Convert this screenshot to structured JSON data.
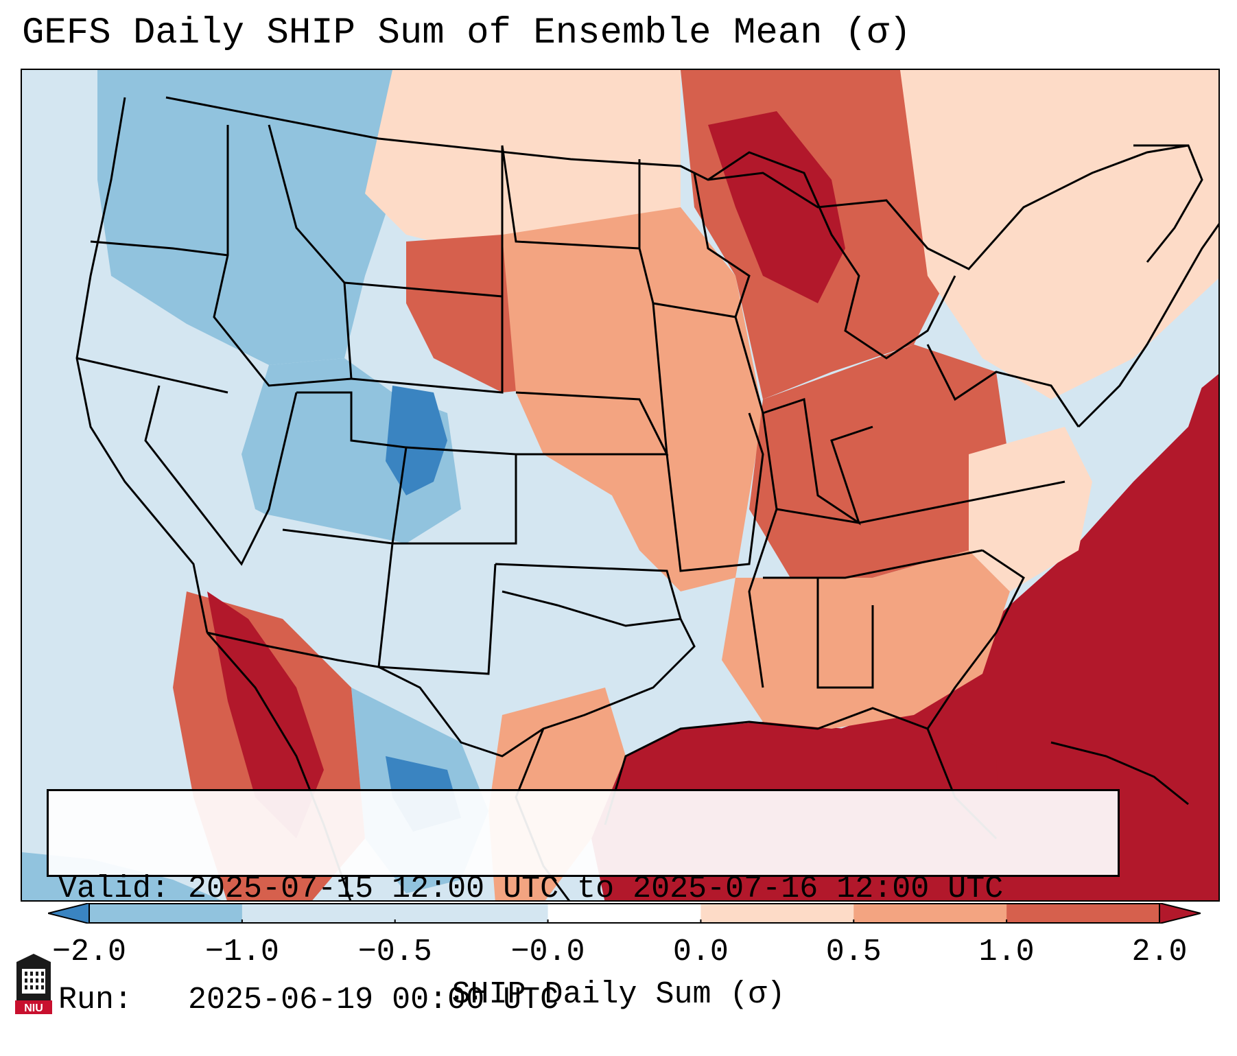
{
  "title": "GEFS Daily SHIP Sum of Ensemble Mean (σ)",
  "info": {
    "valid_label": "Valid:",
    "valid_value": "2025-07-15 12:00 UTC to 2025-07-16 12:00 UTC",
    "run_label": "Run:",
    "run_value": "2025-06-19 00:00 UTC"
  },
  "colorbar": {
    "label": "SHIP Daily Sum (σ)",
    "ticks": [
      "−2.0",
      "−1.0",
      "−0.5",
      "−0.0",
      "0.0",
      "0.5",
      "1.0",
      "2.0"
    ],
    "colors": [
      "#3a84c1",
      "#91c3de",
      "#d4e6f1",
      "#ffffff",
      "#fddbc7",
      "#f3a481",
      "#d6604d",
      "#b2182b"
    ],
    "extend": "both"
  },
  "logo": {
    "icon": "niu-building-icon",
    "text": "NIU"
  },
  "map_colors": {
    "ocean_west": "#d4e6f1",
    "deep_blue": "#3a84c1",
    "mid_blue": "#91c3de",
    "light_blue": "#d4e6f1",
    "white": "#ffffff",
    "light_red": "#fddbc7",
    "salmon": "#f3a481",
    "red": "#d6604d",
    "dark_red": "#b2182b"
  }
}
